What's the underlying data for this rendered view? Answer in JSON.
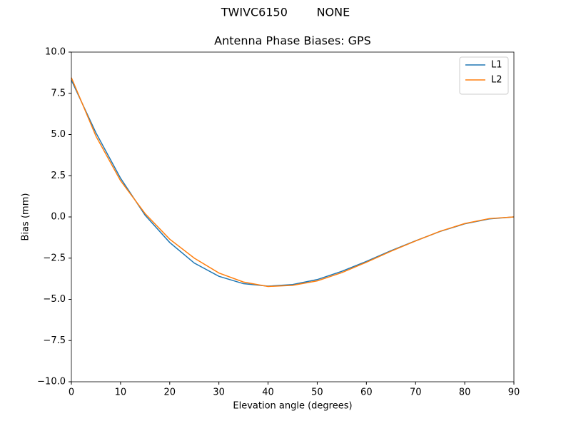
{
  "chart_data": {
    "type": "line",
    "suptitle": "TWIVC6150        NONE",
    "title": "Antenna Phase Biases: GPS",
    "x_label": "Elevation angle (degrees)",
    "y_label": "Bias (mm)",
    "x": [
      0,
      5,
      10,
      15,
      20,
      25,
      30,
      35,
      40,
      45,
      50,
      55,
      60,
      65,
      70,
      75,
      80,
      85,
      90
    ],
    "series": [
      {
        "name": "L1",
        "color": "#1f77b4",
        "values": [
          8.3,
          5.1,
          2.35,
          0.1,
          -1.55,
          -2.8,
          -3.6,
          -4.05,
          -4.2,
          -4.1,
          -3.8,
          -3.3,
          -2.7,
          -2.05,
          -1.45,
          -0.88,
          -0.42,
          -0.12,
          0
        ]
      },
      {
        "name": "L2",
        "color": "#ff7f0e",
        "values": [
          8.45,
          4.9,
          2.2,
          0.2,
          -1.35,
          -2.5,
          -3.4,
          -3.95,
          -4.22,
          -4.15,
          -3.88,
          -3.38,
          -2.75,
          -2.08,
          -1.46,
          -0.87,
          -0.4,
          -0.1,
          0
        ]
      }
    ],
    "xlim": [
      0,
      90
    ],
    "xticks": [
      0,
      10,
      20,
      30,
      40,
      50,
      60,
      70,
      80,
      90
    ],
    "ylim": [
      -10,
      10
    ],
    "yticks": [
      {
        "value": -10,
        "label": "−10.0"
      },
      {
        "value": -7.5,
        "label": "−7.5"
      },
      {
        "value": -5,
        "label": "−5.0"
      },
      {
        "value": -2.5,
        "label": "−2.5"
      },
      {
        "value": 0,
        "label": "0.0"
      },
      {
        "value": 2.5,
        "label": "2.5"
      },
      {
        "value": 5,
        "label": "5.0"
      },
      {
        "value": 7.5,
        "label": "7.5"
      },
      {
        "value": 10,
        "label": "10.0"
      }
    ],
    "legend": "upper-right"
  }
}
